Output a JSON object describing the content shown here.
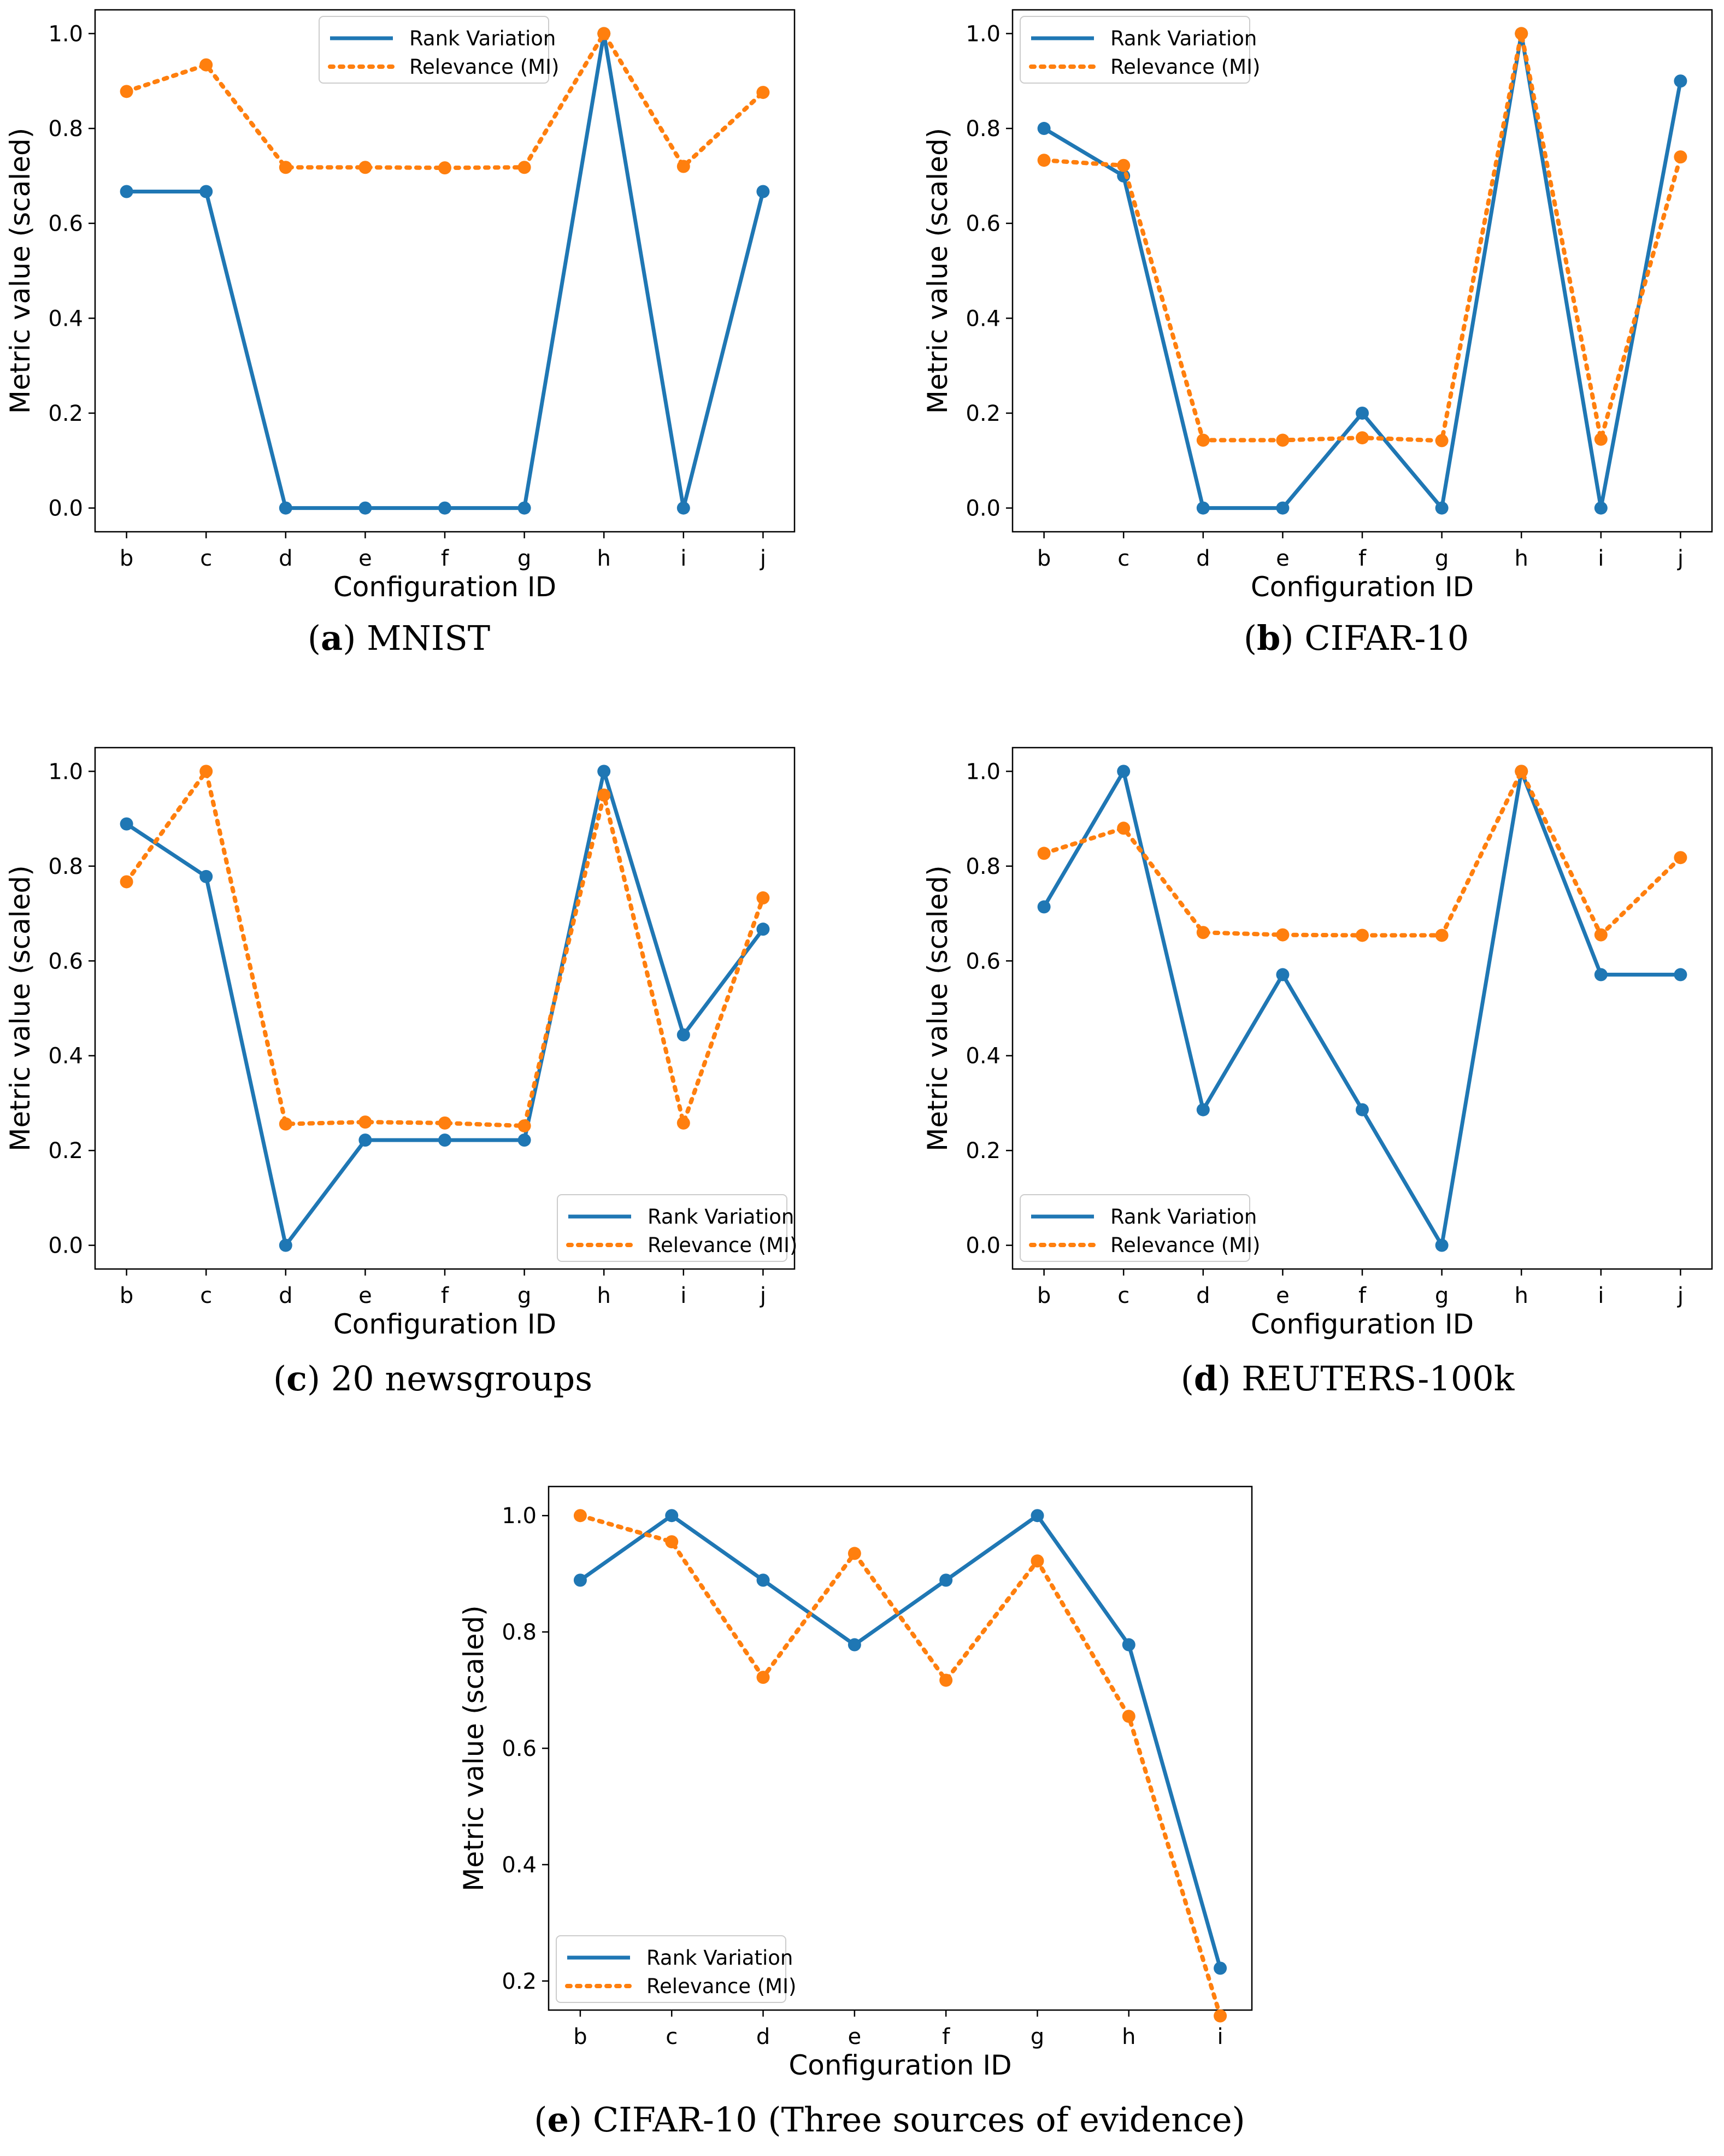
{
  "colors": {
    "rank": "#1f77b4",
    "relevance": "#ff7f0e"
  },
  "chart_data": [
    {
      "type": "line",
      "caption_letter": "a",
      "caption_text": "MNIST",
      "categories": [
        "b",
        "c",
        "d",
        "e",
        "f",
        "g",
        "h",
        "i",
        "j"
      ],
      "xlabel": "Configuration ID",
      "ylabel": "Metric value (scaled)",
      "ylim": [
        -0.05,
        1.05
      ],
      "yticks": [
        "0.0",
        "0.2",
        "0.4",
        "0.6",
        "0.8",
        "1.0"
      ],
      "legend_position": "upper-center",
      "series": [
        {
          "name": "Rank Variation",
          "style": "solid",
          "values": [
            0.667,
            0.667,
            0.0,
            0.0,
            0.0,
            0.0,
            1.0,
            0.0,
            0.667
          ]
        },
        {
          "name": "Relevance (MI)",
          "style": "dotted",
          "values": [
            0.878,
            0.934,
            0.718,
            0.718,
            0.717,
            0.718,
            1.0,
            0.72,
            0.876
          ]
        }
      ]
    },
    {
      "type": "line",
      "caption_letter": "b",
      "caption_text": "CIFAR-10",
      "categories": [
        "b",
        "c",
        "d",
        "e",
        "f",
        "g",
        "h",
        "i",
        "j"
      ],
      "xlabel": "Configuration ID",
      "ylabel": "Metric value (scaled)",
      "ylim": [
        -0.05,
        1.05
      ],
      "yticks": [
        "0.0",
        "0.2",
        "0.4",
        "0.6",
        "0.8",
        "1.0"
      ],
      "legend_position": "upper-left",
      "series": [
        {
          "name": "Rank Variation",
          "style": "solid",
          "values": [
            0.8,
            0.7,
            0.0,
            0.0,
            0.2,
            0.0,
            1.0,
            0.0,
            0.9
          ]
        },
        {
          "name": "Relevance (MI)",
          "style": "dotted",
          "values": [
            0.733,
            0.722,
            0.143,
            0.143,
            0.148,
            0.142,
            1.0,
            0.145,
            0.74
          ]
        }
      ]
    },
    {
      "type": "line",
      "caption_letter": "c",
      "caption_text": "20 newsgroups",
      "categories": [
        "b",
        "c",
        "d",
        "e",
        "f",
        "g",
        "h",
        "i",
        "j"
      ],
      "xlabel": "Configuration ID",
      "ylabel": "Metric value (scaled)",
      "ylim": [
        -0.05,
        1.05
      ],
      "yticks": [
        "0.0",
        "0.2",
        "0.4",
        "0.6",
        "0.8",
        "1.0"
      ],
      "legend_position": "lower-right",
      "series": [
        {
          "name": "Rank Variation",
          "style": "solid",
          "values": [
            0.889,
            0.778,
            0.0,
            0.222,
            0.222,
            0.222,
            1.0,
            0.444,
            0.667
          ]
        },
        {
          "name": "Relevance (MI)",
          "style": "dotted",
          "values": [
            0.767,
            1.0,
            0.256,
            0.26,
            0.258,
            0.252,
            0.95,
            0.258,
            0.733
          ]
        }
      ]
    },
    {
      "type": "line",
      "caption_letter": "d",
      "caption_text": "REUTERS-100k",
      "categories": [
        "b",
        "c",
        "d",
        "e",
        "f",
        "g",
        "h",
        "i",
        "j"
      ],
      "xlabel": "Configuration ID",
      "ylabel": "Metric value (scaled)",
      "ylim": [
        -0.05,
        1.05
      ],
      "yticks": [
        "0.0",
        "0.2",
        "0.4",
        "0.6",
        "0.8",
        "1.0"
      ],
      "legend_position": "lower-left",
      "series": [
        {
          "name": "Rank Variation",
          "style": "solid",
          "values": [
            0.714,
            1.0,
            0.286,
            0.571,
            0.286,
            0.0,
            1.0,
            0.571,
            0.571
          ]
        },
        {
          "name": "Relevance (MI)",
          "style": "dotted",
          "values": [
            0.827,
            0.88,
            0.66,
            0.655,
            0.654,
            0.654,
            1.0,
            0.655,
            0.818
          ]
        }
      ]
    },
    {
      "type": "line",
      "caption_letter": "e",
      "caption_text": "CIFAR-10 (Three sources of evidence)",
      "categories": [
        "b",
        "c",
        "d",
        "e",
        "f",
        "g",
        "h",
        "i"
      ],
      "xlabel": "Configuration ID",
      "ylabel": "Metric value (scaled)",
      "ylim": [
        0.15,
        1.05
      ],
      "yticks": [
        "0.2",
        "0.4",
        "0.6",
        "0.8",
        "1.0"
      ],
      "legend_position": "lower-left",
      "series": [
        {
          "name": "Rank Variation",
          "style": "solid",
          "values": [
            0.889,
            1.0,
            0.889,
            0.778,
            0.889,
            1.0,
            0.778,
            0.222
          ]
        },
        {
          "name": "Relevance (MI)",
          "style": "dotted",
          "values": [
            1.0,
            0.955,
            0.722,
            0.935,
            0.717,
            0.922,
            0.655,
            0.14
          ]
        }
      ]
    }
  ]
}
